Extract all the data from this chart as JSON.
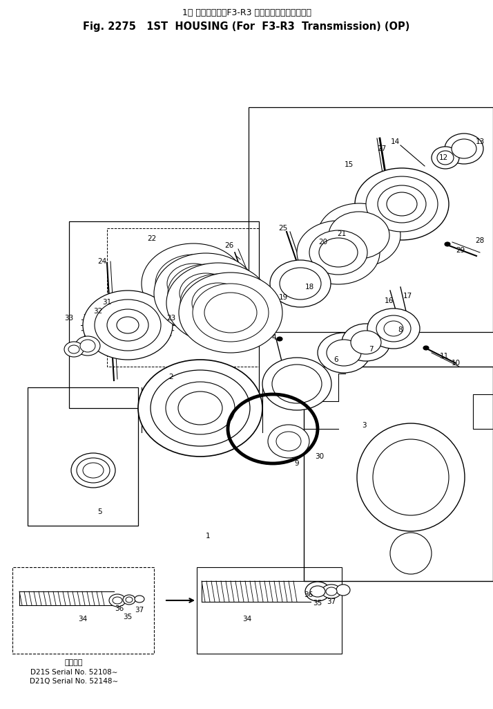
{
  "title_line1": "1速 ハウジング（F3-R3 トランスミッション用）",
  "title_line2": "Fig. 2275   1ST  HOUSING (For  F3-R3  Transmission) (OP)",
  "footer_line1": "適用号機",
  "footer_line2": "D21S Serial No. 52108∼",
  "footer_line3": "D21Q Serial No. 52148∼",
  "bg_color": "#ffffff",
  "text_color": "#000000",
  "fig_width": 7.14,
  "fig_height": 10.25,
  "dpi": 100
}
